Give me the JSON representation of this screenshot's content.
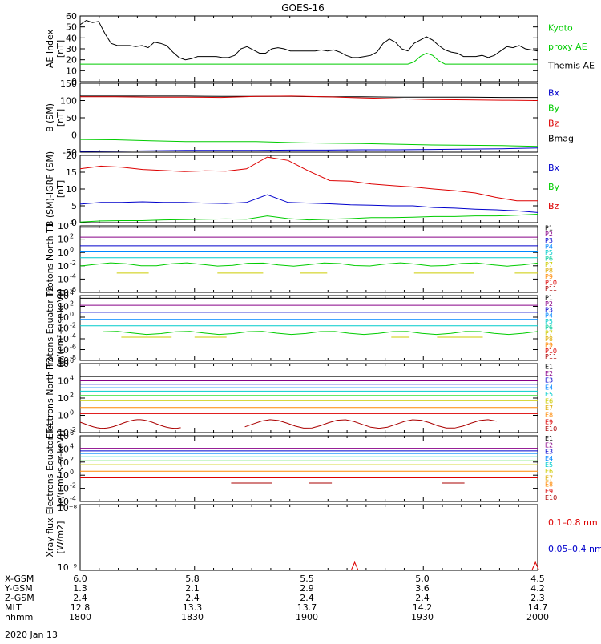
{
  "title": "GOES-16",
  "date_label": "2020 Jan 13",
  "colors": {
    "black": "#000000",
    "blue": "#0000cc",
    "green": "#00cc00",
    "red": "#dd0000",
    "darkred": "#aa0000",
    "cyan": "#00cccc",
    "yellow": "#cccc00",
    "orange": "#ff9900",
    "magenta": "#cc00cc",
    "purple": "#880088",
    "navy": "#0000aa",
    "lime": "#33dd33"
  },
  "ephemeris": {
    "rows": [
      {
        "label": "X-GSM",
        "values": [
          "6.0",
          "5.8",
          "5.5",
          "5.0",
          "4.5"
        ]
      },
      {
        "label": "Y-GSM",
        "values": [
          "1.3",
          "2.1",
          "2.9",
          "3.6",
          "4.2"
        ]
      },
      {
        "label": "Z-GSM",
        "values": [
          "2.4",
          "2.4",
          "2.4",
          "2.4",
          "2.3"
        ]
      },
      {
        "label": "MLT",
        "values": [
          "12.8",
          "13.3",
          "13.7",
          "14.2",
          "14.7"
        ]
      },
      {
        "label": "hhmm",
        "values": [
          "1800",
          "1830",
          "1900",
          "1930",
          "2000"
        ]
      }
    ]
  },
  "chart_data": [
    {
      "type": "line",
      "ylabel": "AE Index [nT]",
      "ylim": [
        0,
        60
      ],
      "yticks": [
        "0",
        "10",
        "20",
        "30",
        "40",
        "50",
        "60"
      ],
      "legend": [
        {
          "text": "Kyoto",
          "color": "#00cc00"
        },
        {
          "text": "proxy AE",
          "color": "#00cc00"
        },
        {
          "text": "Themis AE",
          "color": "#000000"
        }
      ],
      "series": [
        {
          "name": "Themis AE",
          "color": "#000000",
          "values": [
            52,
            56,
            54,
            55,
            44,
            35,
            33,
            33,
            33,
            32,
            33,
            31,
            36,
            35,
            33,
            27,
            22,
            20,
            21,
            23,
            23,
            23,
            23,
            22,
            22,
            24,
            30,
            32,
            29,
            26,
            26,
            30,
            31,
            30,
            28,
            28,
            28,
            28,
            28,
            29,
            28,
            29,
            27,
            24,
            22,
            22,
            23,
            24,
            27,
            35,
            39,
            36,
            30,
            28,
            35,
            38,
            41,
            38,
            33,
            29,
            27,
            26,
            23,
            23,
            23,
            24,
            22,
            24,
            28,
            32,
            31,
            33,
            30,
            29,
            28
          ]
        },
        {
          "name": "Kyoto proxy AE",
          "color": "#00cc00",
          "values": [
            16,
            16,
            16,
            16,
            16,
            16,
            16,
            16,
            16,
            16,
            16,
            16,
            16,
            16,
            16,
            16,
            16,
            16,
            16,
            16,
            16,
            16,
            16,
            16,
            16,
            16,
            16,
            16,
            16,
            16,
            16,
            16,
            16,
            16,
            16,
            16,
            16,
            16,
            16,
            16,
            16,
            16,
            16,
            16,
            16,
            16,
            16,
            16,
            16,
            16,
            16,
            16,
            16,
            16,
            18,
            23,
            26,
            24,
            19,
            16,
            16,
            16,
            16,
            16,
            16,
            16,
            16,
            16,
            16,
            16,
            16,
            16,
            16,
            16,
            16
          ]
        }
      ]
    },
    {
      "type": "line",
      "ylabel": "B (SM) [nT]",
      "ylim": [
        -50,
        150
      ],
      "yticks": [
        "-50",
        "0",
        "50",
        "100",
        "150"
      ],
      "legend": [
        {
          "text": "Bx",
          "color": "#0000cc"
        },
        {
          "text": "By",
          "color": "#00cc00"
        },
        {
          "text": "Bz",
          "color": "#dd0000"
        },
        {
          "text": "Bmag",
          "color": "#000000"
        }
      ],
      "series": [
        {
          "name": "Bmag",
          "color": "#000000",
          "values": [
            113,
            113,
            113,
            113,
            112,
            112,
            112,
            111,
            111,
            110,
            110,
            110,
            109,
            109
          ]
        },
        {
          "name": "Bz",
          "color": "#dd0000",
          "values": [
            111,
            111,
            110,
            110,
            109,
            112,
            113,
            111,
            108,
            105,
            103,
            102,
            101,
            100
          ]
        },
        {
          "name": "By",
          "color": "#00cc00",
          "values": [
            -13,
            -14,
            -17,
            -19,
            -19,
            -19,
            -22,
            -24,
            -25,
            -27,
            -29,
            -30,
            -31,
            -33
          ]
        },
        {
          "name": "Bx",
          "color": "#0000cc",
          "values": [
            -48,
            -47,
            -46,
            -45,
            -45,
            -45,
            -44,
            -44,
            -43,
            -43,
            -42,
            -41,
            -40,
            -38
          ]
        }
      ]
    },
    {
      "type": "line",
      "ylabel": "B (SM)-IGRF (SM) [nT]",
      "ylim": [
        0,
        20
      ],
      "yticks": [
        "0",
        "5",
        "10",
        "15",
        "20"
      ],
      "legend": [
        {
          "text": "Bx",
          "color": "#0000cc"
        },
        {
          "text": "By",
          "color": "#00cc00"
        },
        {
          "text": "Bz",
          "color": "#dd0000"
        }
      ],
      "series": [
        {
          "name": "Bz",
          "color": "#dd0000",
          "values": [
            16,
            16.8,
            16.5,
            15.8,
            15.5,
            15.2,
            15.4,
            15.3,
            16,
            19.5,
            18.5,
            15.3,
            12.5,
            12.3,
            11.5,
            11,
            10.6,
            10,
            9.5,
            8.8,
            7.5,
            6.5,
            6.5
          ]
        },
        {
          "name": "Bx",
          "color": "#0000cc",
          "values": [
            5.5,
            6,
            6,
            6.2,
            6,
            6,
            5.8,
            5.7,
            6,
            8.3,
            6,
            5.8,
            5.6,
            5.3,
            5.2,
            5,
            5,
            4.5,
            4.3,
            4,
            3.8,
            3.5,
            3
          ]
        },
        {
          "name": "By",
          "color": "#00cc00",
          "values": [
            0.2,
            0.5,
            0.6,
            0.6,
            0.8,
            0.9,
            1,
            1.1,
            1,
            2,
            1.2,
            0.8,
            1,
            1.2,
            1.5,
            1.5,
            1.6,
            1.8,
            1.8,
            2,
            2,
            2.2,
            2.5
          ]
        }
      ]
    },
    {
      "type": "line",
      "ylabel": "Protons North T1",
      "ylabel2": "",
      "log": true,
      "ylim_exp": [
        -6,
        4
      ],
      "yticks_exp": [
        -6,
        -4,
        -2,
        0,
        2,
        4
      ],
      "legend": [
        {
          "text": "P1",
          "color": "#000000"
        },
        {
          "text": "P2",
          "color": "#880088"
        },
        {
          "text": "P3",
          "color": "#0000cc"
        },
        {
          "text": "P4",
          "color": "#0088ff"
        },
        {
          "text": "P5",
          "color": "#00cccc"
        },
        {
          "text": "P6",
          "color": "#00cc99"
        },
        {
          "text": "P7",
          "color": "#cccc00"
        },
        {
          "text": "P8",
          "color": "#ddaa00"
        },
        {
          "text": "P9",
          "color": "#ff8800"
        },
        {
          "text": "P10",
          "color": "#dd0000"
        },
        {
          "text": "P11",
          "color": "#aa0000"
        }
      ],
      "series": [
        {
          "name": "P1",
          "color": "#000000",
          "level": 3.8
        },
        {
          "name": "P2",
          "color": "#880088",
          "level": 2.3
        },
        {
          "name": "P3",
          "color": "#0000cc",
          "level": 1.0
        },
        {
          "name": "P4",
          "color": "#0088ff",
          "level": 0.2
        },
        {
          "name": "P5",
          "color": "#00cccc",
          "level": -0.8
        },
        {
          "name": "P6",
          "color": "#00cc00",
          "level": -1.8,
          "wiggle": 0.25
        },
        {
          "name": "P7",
          "color": "#cccc00",
          "level": -3.1,
          "segments": [
            [
              0.08,
              0.15
            ],
            [
              0.3,
              0.4
            ],
            [
              0.48,
              0.54
            ],
            [
              0.73,
              0.86
            ],
            [
              0.95,
              1.0
            ]
          ]
        }
      ]
    },
    {
      "type": "line",
      "ylabel": "Protons Equator T2 [p/(cm²-s-sr-keV)]",
      "log": true,
      "ylim_exp": [
        -8,
        4
      ],
      "yticks_exp": [
        -8,
        -6,
        -4,
        -2,
        0,
        2,
        4
      ],
      "legend": [
        {
          "text": "P1",
          "color": "#000000"
        },
        {
          "text": "P2",
          "color": "#880088"
        },
        {
          "text": "P3",
          "color": "#0000cc"
        },
        {
          "text": "P4",
          "color": "#0088ff"
        },
        {
          "text": "P5",
          "color": "#00cccc"
        },
        {
          "text": "P6",
          "color": "#00cc99"
        },
        {
          "text": "P7",
          "color": "#cccc00"
        },
        {
          "text": "P8",
          "color": "#ddaa00"
        },
        {
          "text": "P9",
          "color": "#ff8800"
        },
        {
          "text": "P10",
          "color": "#dd0000"
        },
        {
          "text": "P11",
          "color": "#aa0000"
        }
      ],
      "series": [
        {
          "name": "P1",
          "color": "#000000",
          "level": 3.5
        },
        {
          "name": "P2",
          "color": "#880088",
          "level": 2.2
        },
        {
          "name": "P3",
          "color": "#0000cc",
          "level": 0.9
        },
        {
          "name": "P4",
          "color": "#0088ff",
          "level": -0.4
        },
        {
          "name": "P5",
          "color": "#00cccc",
          "level": -1.6
        },
        {
          "name": "P6",
          "color": "#00cc00",
          "level": -2.9,
          "wiggle": 0.3,
          "segments": [
            [
              0.05,
              1.0
            ]
          ]
        },
        {
          "name": "P7",
          "color": "#cccc00",
          "level": -3.7,
          "segments": [
            [
              0.09,
              0.2
            ],
            [
              0.25,
              0.32
            ],
            [
              0.68,
              0.72
            ],
            [
              0.78,
              0.88
            ]
          ]
        }
      ]
    },
    {
      "type": "line",
      "ylabel": "Electrons North T3",
      "log": true,
      "ylim_exp": [
        -2,
        6
      ],
      "yticks_exp": [
        -2,
        0,
        2,
        4,
        6
      ],
      "legend": [
        {
          "text": "E1",
          "color": "#000000"
        },
        {
          "text": "E2",
          "color": "#880088"
        },
        {
          "text": "E3",
          "color": "#0000cc"
        },
        {
          "text": "E4",
          "color": "#0088ff"
        },
        {
          "text": "E5",
          "color": "#00cccc"
        },
        {
          "text": "E6",
          "color": "#cccc00"
        },
        {
          "text": "E7",
          "color": "#ddaa00"
        },
        {
          "text": "E8",
          "color": "#ff8800"
        },
        {
          "text": "E9",
          "color": "#dd0000"
        },
        {
          "text": "E10",
          "color": "#aa0000"
        }
      ],
      "series": [
        {
          "name": "E1",
          "color": "#000000",
          "level": 4.5
        },
        {
          "name": "E2",
          "color": "#880088",
          "level": 4.0
        },
        {
          "name": "E3",
          "color": "#0000cc",
          "level": 3.6
        },
        {
          "name": "E4",
          "color": "#0088ff",
          "level": 3.2
        },
        {
          "name": "E5",
          "color": "#00cccc",
          "level": 2.8
        },
        {
          "name": "E6",
          "color": "#33dd33",
          "level": 2.3
        },
        {
          "name": "E7",
          "color": "#cccc00",
          "level": 1.7
        },
        {
          "name": "E8",
          "color": "#ff8800",
          "level": 0.9
        },
        {
          "name": "E9",
          "color": "#dd0000",
          "level": 0.2
        },
        {
          "name": "E10",
          "color": "#aa0000",
          "level": -1.0,
          "wiggle": 0.5,
          "segments": [
            [
              0.0,
              0.22
            ],
            [
              0.36,
              0.91
            ]
          ]
        }
      ]
    },
    {
      "type": "line",
      "ylabel": "Electrons Equator T4 [e/(cm²-s-sr-keV)]",
      "log": true,
      "ylim_exp": [
        -4,
        6
      ],
      "yticks_exp": [
        -4,
        -2,
        0,
        2,
        4,
        6
      ],
      "legend": [
        {
          "text": "E1",
          "color": "#000000"
        },
        {
          "text": "E2",
          "color": "#880088"
        },
        {
          "text": "E3",
          "color": "#0000cc"
        },
        {
          "text": "E4",
          "color": "#0088ff"
        },
        {
          "text": "E5",
          "color": "#00cccc"
        },
        {
          "text": "E6",
          "color": "#cccc00"
        },
        {
          "text": "E7",
          "color": "#ddaa00"
        },
        {
          "text": "E8",
          "color": "#ff8800"
        },
        {
          "text": "E9",
          "color": "#dd0000"
        },
        {
          "text": "E10",
          "color": "#aa0000"
        }
      ],
      "series": [
        {
          "name": "E1",
          "color": "#000000",
          "level": 4.6
        },
        {
          "name": "E2",
          "color": "#880088",
          "level": 4.1
        },
        {
          "name": "E3",
          "color": "#0000cc",
          "level": 3.7
        },
        {
          "name": "E4",
          "color": "#0088ff",
          "level": 3.3
        },
        {
          "name": "E5",
          "color": "#00cccc",
          "level": 2.8
        },
        {
          "name": "E6",
          "color": "#33dd33",
          "level": 2.2
        },
        {
          "name": "E7",
          "color": "#cccc00",
          "level": 1.6
        },
        {
          "name": "E8",
          "color": "#ff8800",
          "level": 0.6
        },
        {
          "name": "E9",
          "color": "#dd0000",
          "level": -0.4
        },
        {
          "name": "E10",
          "color": "#aa0000",
          "level": -1.2,
          "segments": [
            [
              0.33,
              0.42
            ],
            [
              0.5,
              0.55
            ],
            [
              0.79,
              0.84
            ]
          ]
        }
      ]
    },
    {
      "type": "line",
      "ylabel": "Xray flux [W/m2]",
      "log": true,
      "ylim_exp": [
        -9,
        -8
      ],
      "yticks_labels": [
        "10⁻⁸",
        "10⁻⁹"
      ],
      "legend": [
        {
          "text": "0.1–0.8 nm",
          "color": "#dd0000"
        },
        {
          "text": "0.05–0.4 nm",
          "color": "#0000cc"
        }
      ],
      "series": [
        {
          "name": "0.1–0.8 nm",
          "color": "#dd0000",
          "spikes": [
            0.6,
            0.995
          ]
        }
      ]
    }
  ]
}
